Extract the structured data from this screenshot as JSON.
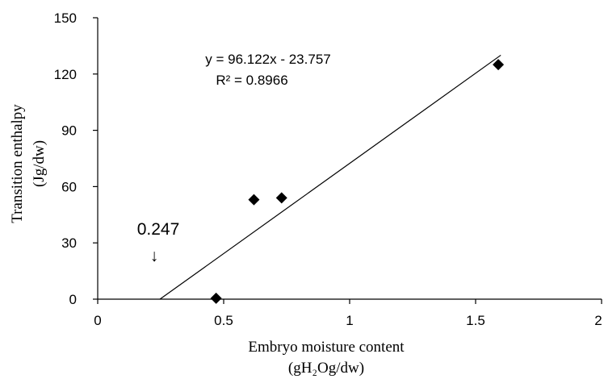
{
  "chart_data": {
    "type": "scatter",
    "xlim": [
      0,
      2
    ],
    "ylim": [
      0,
      150
    ],
    "x_ticks": [
      0,
      0.5,
      1,
      1.5,
      2
    ],
    "y_ticks": [
      0,
      30,
      60,
      90,
      120,
      150
    ],
    "x_tick_labels": [
      "0",
      "0.5",
      "1",
      "1.5",
      "2"
    ],
    "y_tick_labels": [
      "0",
      "30",
      "60",
      "90",
      "120",
      "150"
    ],
    "xlabel": "Embryo moisture content",
    "xlabel_line2": "(gH₂Og/dw)",
    "ylabel": "Transition enthalpy",
    "ylabel_line2": "(Jg/dw)",
    "grid": false,
    "marker": "diamond",
    "marker_color": "#000000",
    "series": [
      {
        "points": [
          {
            "x": 0.47,
            "y": 0.5
          },
          {
            "x": 0.62,
            "y": 53
          },
          {
            "x": 0.73,
            "y": 54
          },
          {
            "x": 1.59,
            "y": 125
          }
        ]
      }
    ],
    "trendline": {
      "slope": 96.122,
      "intercept": -23.757,
      "x_range": [
        0.247,
        1.6
      ]
    },
    "annotations": {
      "equation": "y = 96.122x - 23.757",
      "r_squared": "R² = 0.8966",
      "intercept_label": "0.247",
      "intercept_arrow": "↓"
    }
  }
}
